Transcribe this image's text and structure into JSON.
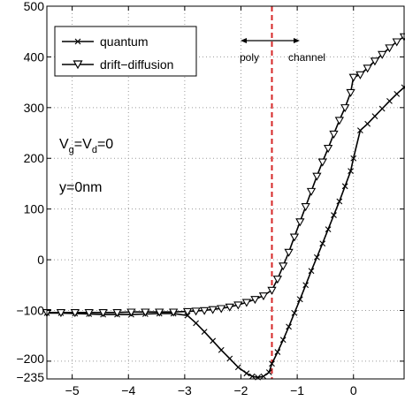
{
  "chart_data": {
    "type": "line",
    "title": "",
    "xlabel": "",
    "ylabel": "",
    "xlim": [
      -5.45,
      0.9
    ],
    "ylim": [
      -235,
      500
    ],
    "grid": true,
    "legend_position": "top-left",
    "x_ticks": [
      -5,
      -4,
      -3,
      -2,
      -1,
      0
    ],
    "x_tick_labels": [
      "−5",
      "−4",
      "−3",
      "−2",
      "−1",
      "0"
    ],
    "y_ticks": [
      -235,
      -200,
      -100,
      0,
      100,
      200,
      300,
      400,
      500
    ],
    "y_tick_labels": [
      "−235",
      "−200",
      "−100",
      "0",
      "100",
      "200",
      "300",
      "400",
      "500"
    ],
    "series": [
      {
        "name": "quantum",
        "marker": "x",
        "color": "#000000",
        "x": [
          -5.45,
          -5.2,
          -4.95,
          -4.7,
          -4.45,
          -4.2,
          -3.95,
          -3.7,
          -3.45,
          -3.2,
          -2.95,
          -2.8,
          -2.65,
          -2.5,
          -2.35,
          -2.2,
          -2.05,
          -1.9,
          -1.8,
          -1.7,
          -1.6,
          -1.5,
          -1.45,
          -1.35,
          -1.25,
          -1.15,
          -1.05,
          -0.95,
          -0.85,
          -0.75,
          -0.65,
          -0.55,
          -0.45,
          -0.35,
          -0.25,
          -0.15,
          -0.05,
          0.0,
          0.12,
          0.25,
          0.38,
          0.51,
          0.64,
          0.77,
          0.9
        ],
        "y": [
          -105,
          -105,
          -106,
          -107,
          -108,
          -108,
          -108,
          -107,
          -106,
          -106,
          -110,
          -125,
          -142,
          -160,
          -178,
          -195,
          -212,
          -224,
          -230,
          -232,
          -230,
          -222,
          -205,
          -182,
          -158,
          -132,
          -105,
          -78,
          -50,
          -22,
          5,
          32,
          60,
          88,
          115,
          145,
          175,
          200,
          255,
          268,
          283,
          298,
          313,
          327,
          340
        ]
      },
      {
        "name": "drift−diffusion",
        "marker": "triangle-down",
        "color": "#000000",
        "x": [
          -5.45,
          -5.2,
          -4.95,
          -4.7,
          -4.45,
          -4.2,
          -3.95,
          -3.7,
          -3.45,
          -3.2,
          -2.95,
          -2.8,
          -2.65,
          -2.5,
          -2.35,
          -2.2,
          -2.05,
          -1.9,
          -1.75,
          -1.6,
          -1.45,
          -1.35,
          -1.25,
          -1.15,
          -1.05,
          -0.95,
          -0.85,
          -0.75,
          -0.65,
          -0.55,
          -0.45,
          -0.35,
          -0.25,
          -0.15,
          -0.05,
          0.0,
          0.12,
          0.25,
          0.38,
          0.51,
          0.64,
          0.77,
          0.9
        ],
        "y": [
          -104,
          -104,
          -104,
          -104,
          -104,
          -104,
          -103,
          -103,
          -103,
          -103,
          -102,
          -101,
          -100,
          -98,
          -96,
          -93,
          -89,
          -84,
          -78,
          -71,
          -60,
          -38,
          -12,
          15,
          45,
          75,
          105,
          135,
          165,
          193,
          220,
          248,
          275,
          300,
          330,
          360,
          365,
          378,
          392,
          405,
          418,
          430,
          440
        ]
      }
    ],
    "divider_x": -1.45,
    "divider_color": "#d62728"
  },
  "legend": {
    "items": [
      "quantum",
      "drift−diffusion"
    ]
  },
  "annotations": {
    "vg_v": "V",
    "vg_g": "g",
    "vg_mid": "=V",
    "vg_d": "d",
    "vg_end": "=0",
    "y_eq": "y=0nm",
    "poly": "poly",
    "channel": "channel"
  }
}
